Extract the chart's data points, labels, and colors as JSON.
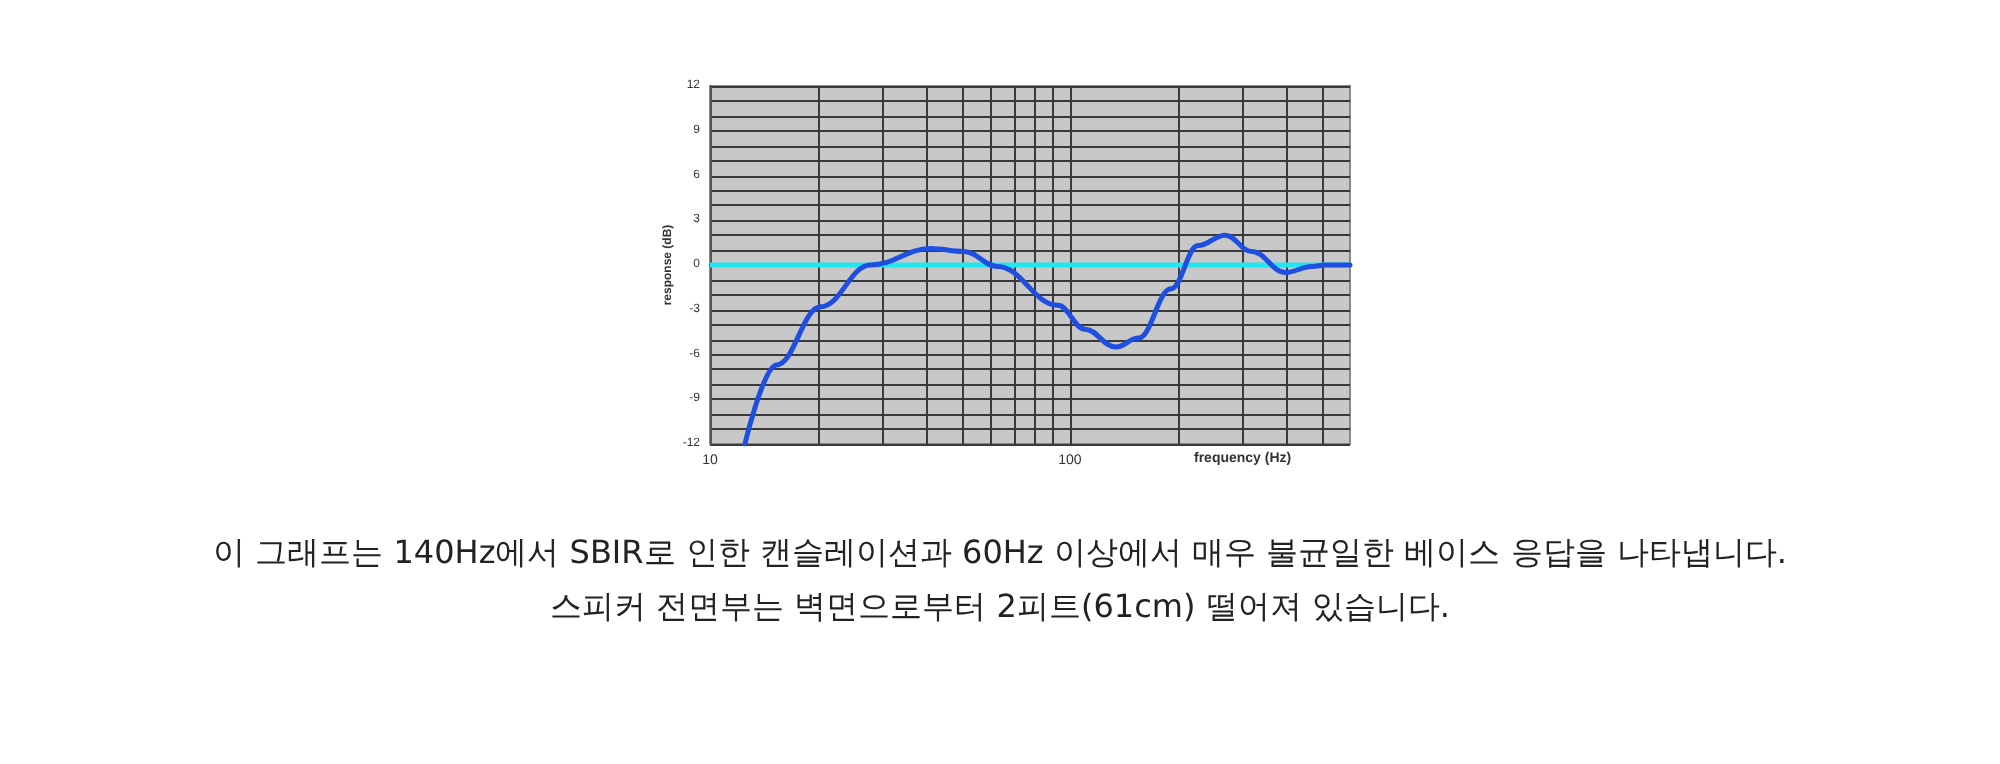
{
  "chart_data": {
    "type": "line",
    "xlabel": "frequency (Hz)",
    "ylabel": "response (dB)",
    "annotations": [
      "이 그래프는 140Hz에서 SBIR로 인한 캔슬레이션과 60Hz 이상에서 매우 불균일한 베이스 응답을 나타냅니다.",
      "스피커 전면부는 벽면으로부터 2피트(61cm) 떨어져 있습니다."
    ],
    "log": "x",
    "xlim": [
      10,
      600
    ],
    "xticks": [
      10,
      {
        "value": 20,
        "label": null
      },
      {
        "value": 30,
        "label": null
      },
      {
        "value": 40,
        "label": null
      },
      {
        "value": 50,
        "label": null
      },
      {
        "value": 60,
        "label": null
      },
      {
        "value": 70,
        "label": null
      },
      {
        "value": 80,
        "label": null
      },
      {
        "value": 90,
        "label": null
      },
      100,
      {
        "value": 200,
        "label": null
      },
      {
        "value": 300,
        "label": null
      },
      {
        "value": 400,
        "label": null
      },
      {
        "value": 500,
        "label": null
      }
    ],
    "ylim": [
      -12,
      12
    ],
    "yticks": [
      -12,
      {
        "value": -11,
        "label": null
      },
      {
        "value": -10,
        "label": null
      },
      -9,
      {
        "value": -8,
        "label": null
      },
      {
        "value": -7,
        "label": null
      },
      -6,
      {
        "value": -5,
        "label": null
      },
      {
        "value": -4,
        "label": null
      },
      -3,
      {
        "value": -2,
        "label": null
      },
      {
        "value": -1,
        "label": null
      },
      0,
      {
        "value": 1,
        "label": null
      },
      {
        "value": 2,
        "label": null
      },
      3,
      {
        "value": 4,
        "label": null
      },
      {
        "value": 5,
        "label": null
      },
      6,
      {
        "value": 7,
        "label": null
      },
      {
        "value": 8,
        "label": null
      },
      9,
      {
        "value": 10,
        "label": null
      },
      {
        "value": 11,
        "label": null
      },
      12
    ],
    "grid": true,
    "marker": "none",
    "line_style": "solid",
    "ref_lines": [
      {
        "axis": "y",
        "value": 0,
        "color": "#22e6f0"
      }
    ],
    "series": [
      {
        "color": "#1f4fe0",
        "x": [
          12.5,
          15.3,
          20.3,
          27.9,
          41,
          50.8,
          63,
          92.6,
          110,
          134,
          155,
          191,
          227,
          270,
          320,
          397,
          471,
          513,
          600
        ],
        "values": [
          -12,
          -6.7,
          -2.8,
          0,
          1.1,
          0.9,
          -0.1,
          -2.7,
          -4.3,
          -5.5,
          -4.9,
          -1.6,
          1.3,
          2.0,
          0.9,
          -0.5,
          -0.1,
          0,
          0
        ]
      }
    ]
  }
}
